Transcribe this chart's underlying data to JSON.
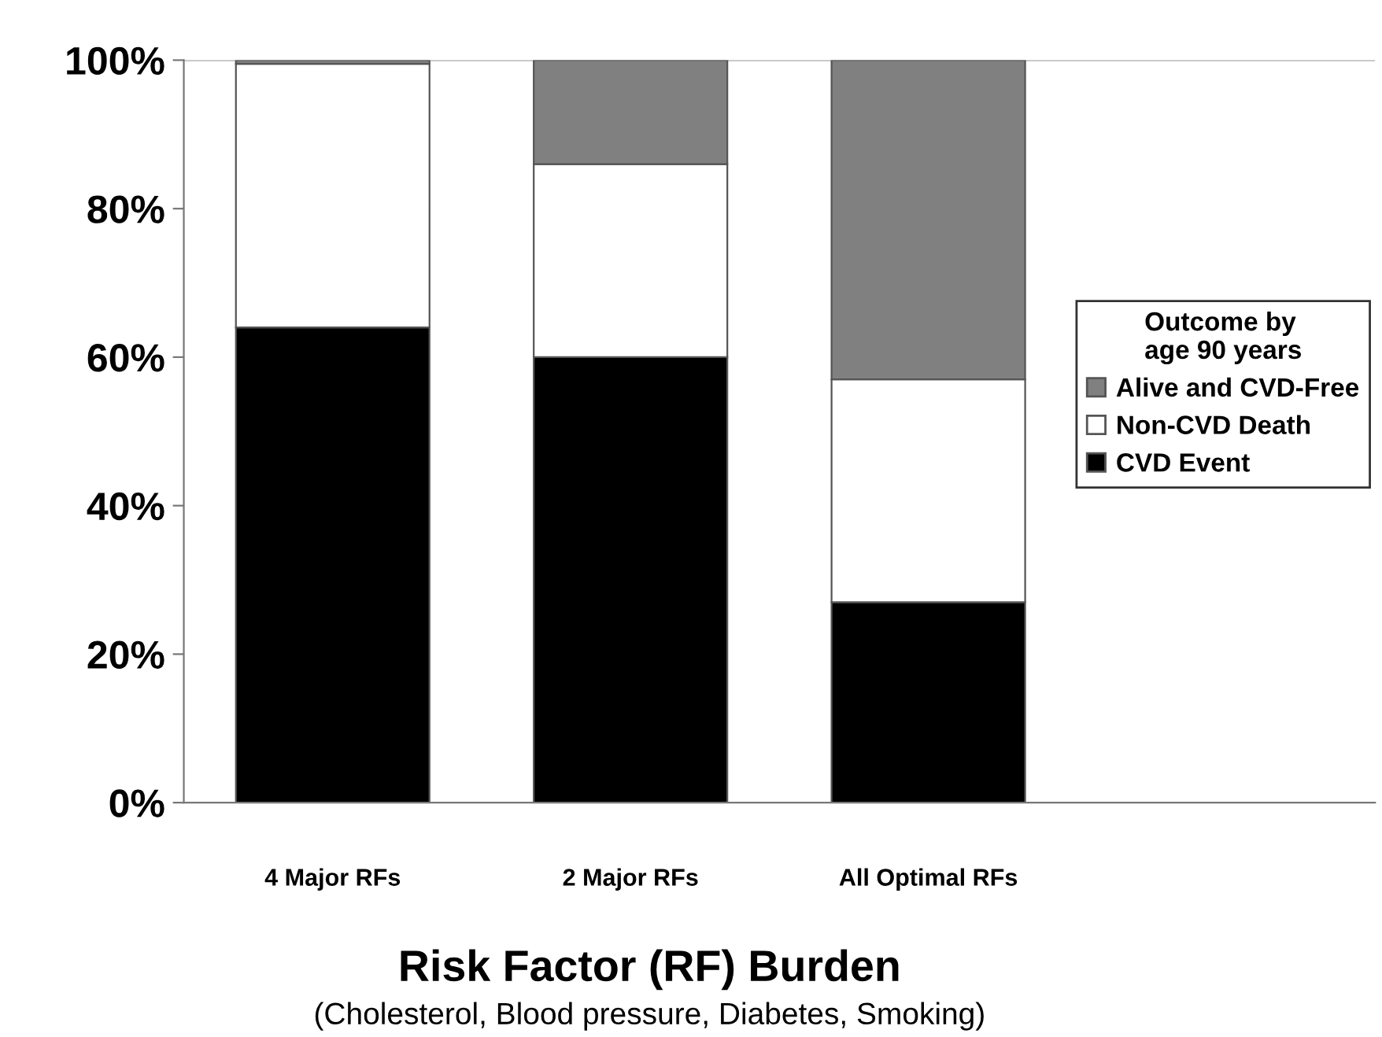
{
  "chart_data": {
    "type": "bar",
    "stacked": true,
    "categories": [
      "4 Major RFs",
      "2 Major RFs",
      "All Optimal RFs"
    ],
    "series": [
      {
        "name": "CVD Event",
        "color": "#000000",
        "values": [
          64,
          60,
          27
        ]
      },
      {
        "name": "Non-CVD Death",
        "color": "#ffffff",
        "values": [
          35.5,
          26,
          30
        ]
      },
      {
        "name": "Alive and CVD-Free",
        "color": "#808080",
        "values": [
          0.5,
          14,
          43
        ]
      }
    ],
    "ylim": [
      0,
      100
    ],
    "yticks": [
      {
        "value": 0,
        "label": "0%"
      },
      {
        "value": 20,
        "label": "20%"
      },
      {
        "value": 40,
        "label": "40%"
      },
      {
        "value": 60,
        "label": "60%"
      },
      {
        "value": 80,
        "label": "80%"
      },
      {
        "value": 100,
        "label": "100%"
      }
    ],
    "xlabel": "Risk Factor (RF) Burden",
    "annotations": [
      "(Cholesterol, Blood pressure, Diabetes, Smoking)"
    ],
    "legend_title": "Outcome by\nage 90 years",
    "legend": "right",
    "grid": false
  }
}
